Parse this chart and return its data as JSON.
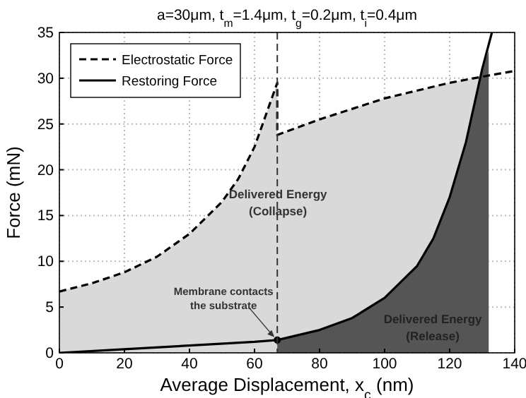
{
  "chart_data": {
    "type": "line",
    "title": "a=30μm, t$_{m}$=1.4μm, t$_{g}$=0.2μm, t$_{i}$=0.4μm",
    "xlabel": "Average Displacement, x$_{c}$ (nm)",
    "ylabel": "Force (mN)",
    "xlim": [
      0,
      140
    ],
    "ylim": [
      0,
      35
    ],
    "xticks": [
      0,
      20,
      40,
      60,
      80,
      100,
      120,
      140
    ],
    "yticks": [
      0,
      5,
      10,
      15,
      20,
      25,
      30,
      35
    ],
    "grid": true,
    "legend": "top left",
    "series": [
      {
        "type": "area",
        "color": "#d9d9d9",
        "x": [
          0,
          10,
          20,
          30,
          40,
          50,
          55,
          60,
          67,
          67,
          80,
          100,
          120,
          132
        ],
        "values": [
          6.7,
          7.6,
          8.8,
          10.5,
          13,
          16.5,
          19,
          22.5,
          29.5,
          23.8,
          25.5,
          27.8,
          29.5,
          30.3
        ]
      },
      {
        "type": "area",
        "color": "#555555",
        "x": [
          67,
          80,
          90,
          100,
          110,
          115,
          120,
          125,
          130,
          132
        ],
        "values": [
          1.4,
          2.5,
          3.8,
          6,
          9.5,
          12.5,
          17,
          23,
          31,
          33
        ]
      },
      {
        "name": "Electrostatic Force",
        "color": "#000000",
        "line_style": "dashed",
        "x": [
          0,
          10,
          20,
          30,
          40,
          50,
          55,
          60,
          67,
          67,
          80,
          100,
          120,
          132,
          140
        ],
        "values": [
          6.7,
          7.6,
          8.8,
          10.5,
          13,
          16.5,
          19,
          22.5,
          29.5,
          23.8,
          25.5,
          27.8,
          29.5,
          30.3,
          30.8
        ]
      },
      {
        "name": "Restoring Force",
        "color": "#000000",
        "line_style": "solid",
        "x": [
          0,
          20,
          40,
          60,
          67,
          80,
          90,
          100,
          110,
          115,
          120,
          125,
          130,
          133
        ],
        "values": [
          0,
          0.4,
          0.8,
          1.2,
          1.4,
          2.5,
          3.8,
          6,
          9.5,
          12.5,
          17,
          23,
          31,
          35
        ]
      },
      {
        "type": "scatter",
        "color": "#000000",
        "marker": "circle",
        "x": [
          67
        ],
        "values": [
          1.4
        ]
      }
    ],
    "ref_lines": [
      {
        "axis": "x",
        "value": 67,
        "line_style": "dashed",
        "color": "#333333"
      }
    ],
    "annotations": [
      "Delivered Energy\n(Collapse)",
      "Delivered Energy\n(Release)",
      {
        "text": "Membrane contacts\nthe substrate",
        "x": 67,
        "y": 1.4
      }
    ]
  }
}
